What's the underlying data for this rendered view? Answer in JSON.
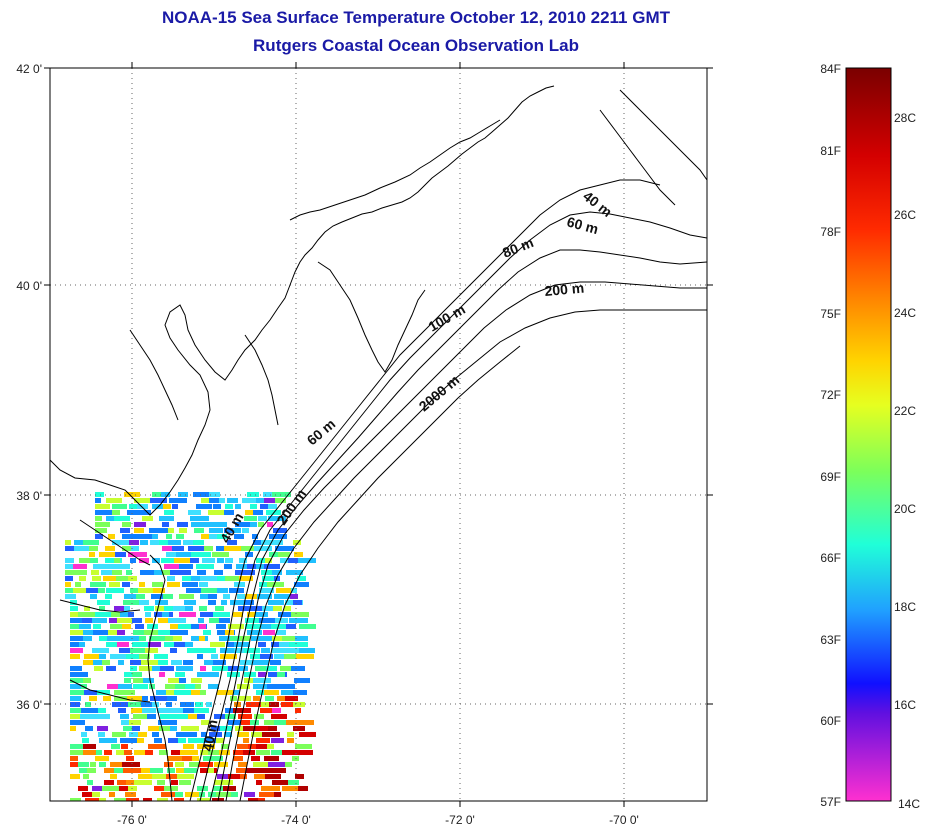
{
  "header": {
    "title": "NOAA-15 Sea Surface Temperature October 12, 2010 2211 GMT",
    "subtitle": "Rutgers Coastal Ocean Observation Lab"
  },
  "map": {
    "lat_ticks": [
      "42 0'",
      "40 0'",
      "38 0'",
      "36 0'"
    ],
    "lon_ticks": [
      "-76 0'",
      "-74 0'",
      "-72 0'",
      "-70 0'"
    ],
    "grid": "dotted",
    "contour_labels": [
      "40 m",
      "60 m",
      "80 m",
      "100 m",
      "200 m",
      "2000 m",
      "60 m",
      "200 m",
      "40 m",
      "40 m"
    ]
  },
  "colorbar": {
    "fahrenheit_labels": [
      "84F",
      "81F",
      "78F",
      "75F",
      "72F",
      "69F",
      "66F",
      "63F",
      "60F",
      "57F"
    ],
    "celsius_labels": [
      "28C",
      "26C",
      "24C",
      "22C",
      "20C",
      "18C",
      "16C",
      "14C"
    ],
    "range_f": [
      57,
      84
    ],
    "range_c": [
      14,
      29
    ]
  },
  "colors": {
    "title": "#1a1aa6",
    "coastline": "#000000",
    "grid": "#666666"
  }
}
